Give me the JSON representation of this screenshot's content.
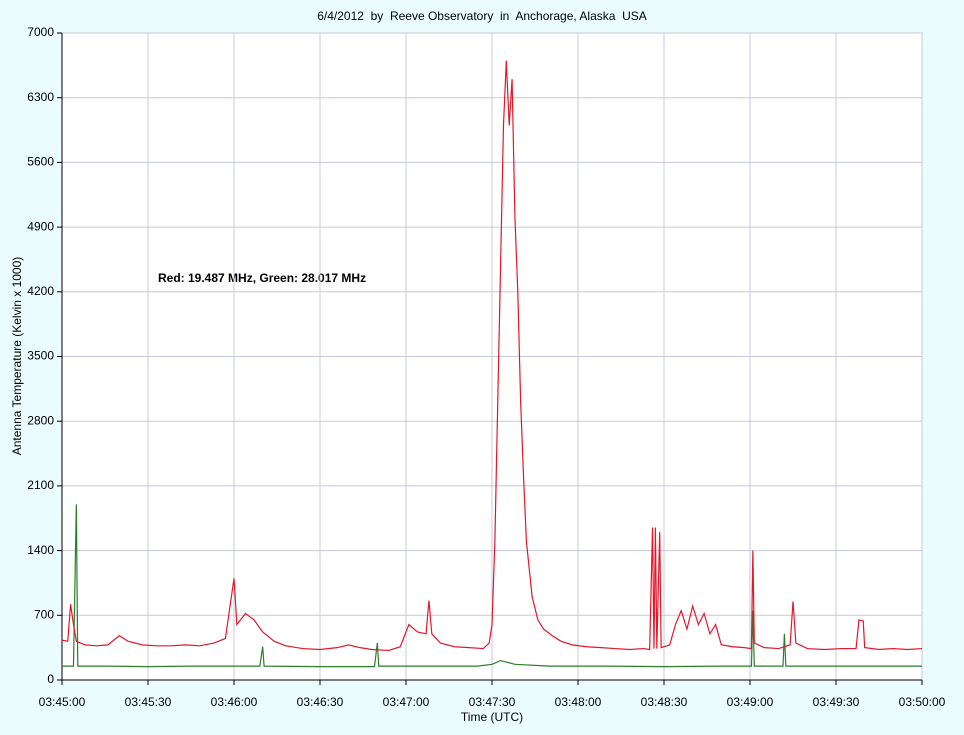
{
  "chart_data": {
    "type": "line",
    "title": "6/4/2012  by  Reeve Observatory  in  Anchorage, Alaska  USA",
    "xlabel": "Time (UTC)",
    "ylabel": "Antenna Temperature (Kelvin x 1000)",
    "annotation": "Red: 19.487 MHz, Green: 28.017 MHz",
    "xlim": [
      13500,
      13800
    ],
    "ylim": [
      0,
      7000
    ],
    "yticks": [
      0,
      700,
      1400,
      2100,
      2800,
      3500,
      4200,
      4900,
      5600,
      6300,
      7000
    ],
    "xticks": [
      {
        "value": 13500,
        "label": "03:45:00"
      },
      {
        "value": 13530,
        "label": "03:45:30"
      },
      {
        "value": 13560,
        "label": "03:46:00"
      },
      {
        "value": 13590,
        "label": "03:46:30"
      },
      {
        "value": 13620,
        "label": "03:47:00"
      },
      {
        "value": 13650,
        "label": "03:47:30"
      },
      {
        "value": 13680,
        "label": "03:48:00"
      },
      {
        "value": 13710,
        "label": "03:48:30"
      },
      {
        "value": 13740,
        "label": "03:49:00"
      },
      {
        "value": 13770,
        "label": "03:49:30"
      },
      {
        "value": 13800,
        "label": "03:50:00"
      }
    ],
    "grid": true,
    "series": [
      {
        "name": "Red",
        "color": "#e3172a",
        "x": [
          13500,
          13502,
          13503,
          13504,
          13505,
          13508,
          13512,
          13516,
          13520,
          13523,
          13528,
          13533,
          13538,
          13543,
          13548,
          13553,
          13557,
          13560,
          13561,
          13564,
          13567,
          13570,
          13574,
          13578,
          13584,
          13590,
          13596,
          13600,
          13604,
          13608,
          13614,
          13618,
          13621,
          13624,
          13627,
          13628,
          13629,
          13632,
          13637,
          13642,
          13647,
          13649,
          13650,
          13651,
          13652,
          13653,
          13654,
          13655,
          13656,
          13657,
          13658,
          13659,
          13660,
          13661,
          13662,
          13664,
          13666,
          13668,
          13671,
          13674,
          13678,
          13683,
          13688,
          13693,
          13698,
          13703,
          13705,
          13706,
          13706.5,
          13707,
          13707.5,
          13708.5,
          13709,
          13712,
          13714,
          13716,
          13718,
          13720,
          13722,
          13724,
          13726,
          13728,
          13730,
          13734,
          13738,
          13740.5,
          13741,
          13741.5,
          13745,
          13750,
          13754,
          13755,
          13756,
          13760,
          13766,
          13772,
          13777,
          13778,
          13779.5,
          13780,
          13785,
          13790,
          13795,
          13800
        ],
        "values": [
          430,
          420,
          820,
          600,
          420,
          380,
          370,
          380,
          480,
          420,
          380,
          370,
          370,
          380,
          370,
          400,
          450,
          1100,
          600,
          720,
          650,
          520,
          420,
          370,
          340,
          330,
          350,
          380,
          350,
          330,
          320,
          360,
          600,
          520,
          500,
          860,
          500,
          400,
          360,
          350,
          340,
          400,
          600,
          1500,
          3000,
          4500,
          6000,
          6700,
          6000,
          6500,
          5000,
          4200,
          3000,
          2200,
          1500,
          900,
          650,
          550,
          480,
          420,
          380,
          360,
          350,
          340,
          330,
          340,
          330,
          1650,
          340,
          1650,
          340,
          1600,
          350,
          380,
          600,
          750,
          550,
          800,
          600,
          720,
          500,
          600,
          380,
          360,
          350,
          340,
          1400,
          400,
          350,
          340,
          380,
          850,
          400,
          340,
          330,
          340,
          340,
          650,
          640,
          350,
          330,
          340,
          330,
          340
        ]
      },
      {
        "name": "Green",
        "color": "#2c7d2c",
        "x": [
          13500,
          13504,
          13505,
          13505.5,
          13515,
          13530,
          13545,
          13560,
          13569,
          13570,
          13570.5,
          13590,
          13609,
          13610,
          13610.5,
          13630,
          13645,
          13650,
          13653,
          13658,
          13670,
          13690,
          13710,
          13730,
          13740.5,
          13741,
          13741.5,
          13751.5,
          13752,
          13752.5,
          13770,
          13800
        ],
        "values": [
          150,
          150,
          1900,
          150,
          150,
          145,
          150,
          150,
          150,
          360,
          150,
          145,
          145,
          400,
          150,
          150,
          150,
          170,
          210,
          170,
          150,
          150,
          145,
          150,
          150,
          750,
          150,
          150,
          500,
          150,
          150,
          150
        ]
      }
    ]
  }
}
